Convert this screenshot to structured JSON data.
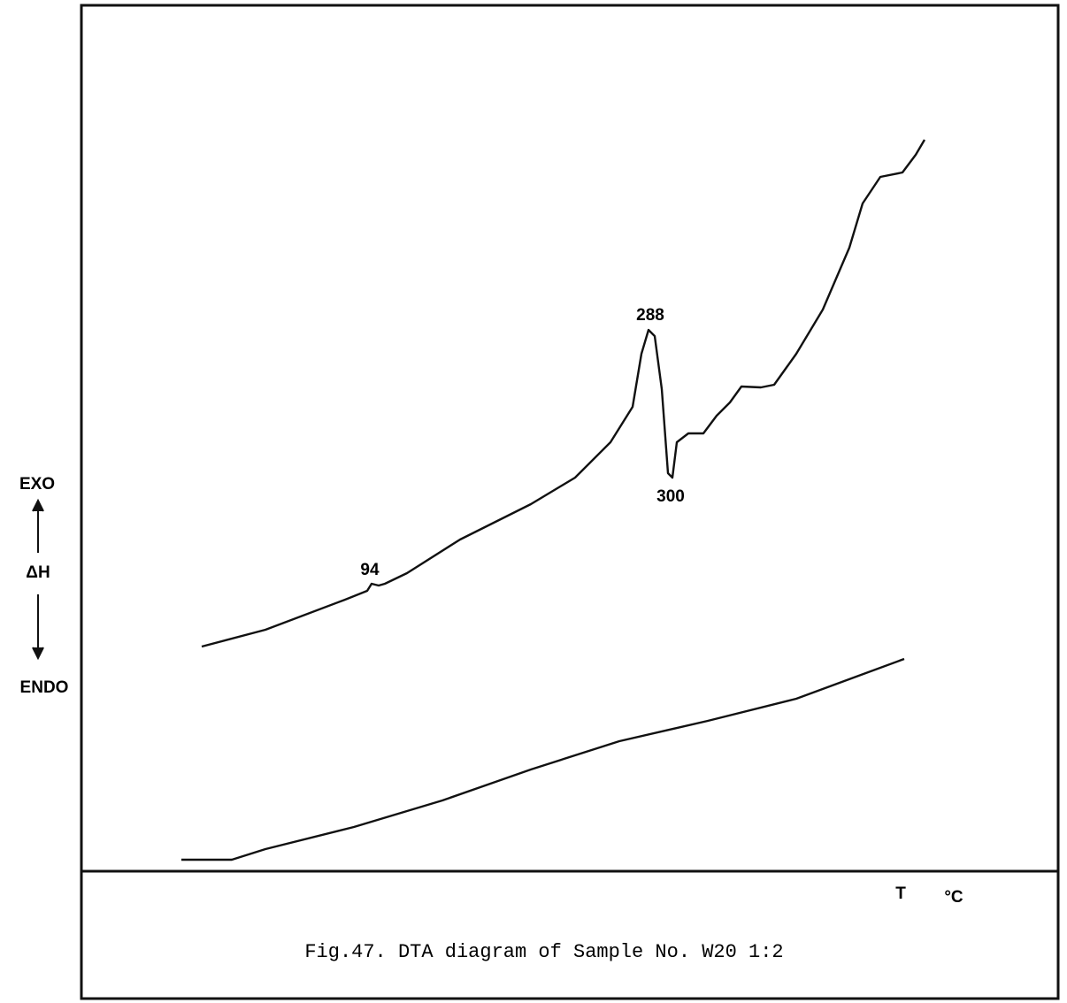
{
  "axis": {
    "exo": "EXO",
    "delta_h": "ΔH",
    "endo": "ENDO",
    "temperature": "T",
    "unit": "°C"
  },
  "peaks": [
    "94",
    "288",
    "300"
  ],
  "caption": "Fig.47. DTA diagram of Sample No. W20 1:2"
}
